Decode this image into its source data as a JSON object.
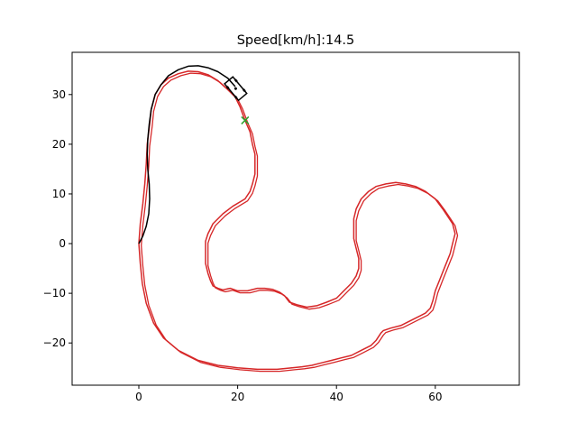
{
  "chart_data": {
    "type": "line",
    "title": "Speed[km/h]:14.5",
    "xlabel": "",
    "ylabel": "",
    "xlim": [
      -13.5,
      77
    ],
    "ylim": [
      -28.5,
      38.5
    ],
    "x_ticks": [
      0,
      20,
      40,
      60
    ],
    "y_ticks": [
      -20,
      -10,
      0,
      10,
      20,
      30
    ],
    "grid": false,
    "legend": "none",
    "colors": {
      "reference": "#d62728",
      "trajectory": "#000000",
      "target": "#2ca02c",
      "vehicle": "#000000"
    },
    "series": [
      {
        "kind": "reference-course",
        "points": [
          [
            21.5,
            24.8
          ],
          [
            22.5,
            22.5
          ],
          [
            23.0,
            20.0
          ],
          [
            23.5,
            18.0
          ],
          [
            23.5,
            16.0
          ],
          [
            23.5,
            14.0
          ],
          [
            23.0,
            12.0
          ],
          [
            22.5,
            10.5
          ],
          [
            21.5,
            9.0
          ],
          [
            19.0,
            7.5
          ],
          [
            17.0,
            6.0
          ],
          [
            16.0,
            5.0
          ],
          [
            15.0,
            4.0
          ],
          [
            14.5,
            3.0
          ],
          [
            14.0,
            2.0
          ],
          [
            13.5,
            0.5
          ],
          [
            13.5,
            -2.0
          ],
          [
            13.5,
            -4.0
          ],
          [
            14.0,
            -6.0
          ],
          [
            14.5,
            -7.5
          ],
          [
            15.0,
            -8.5
          ],
          [
            16.0,
            -9.0
          ],
          [
            17.0,
            -9.3
          ],
          [
            18.5,
            -9.0
          ],
          [
            20.0,
            -9.5
          ],
          [
            22.0,
            -9.5
          ],
          [
            24.0,
            -9.0
          ],
          [
            25.5,
            -9.0
          ],
          [
            27.0,
            -9.2
          ],
          [
            28.5,
            -9.8
          ],
          [
            29.5,
            -10.5
          ],
          [
            30.5,
            -11.8
          ],
          [
            32.0,
            -12.3
          ],
          [
            34.0,
            -12.8
          ],
          [
            36.0,
            -12.5
          ],
          [
            38.0,
            -11.8
          ],
          [
            40.0,
            -11.0
          ],
          [
            41.5,
            -9.5
          ],
          [
            43.0,
            -8.0
          ],
          [
            44.0,
            -6.5
          ],
          [
            44.5,
            -5.0
          ],
          [
            44.5,
            -3.0
          ],
          [
            44.0,
            -1.0
          ],
          [
            43.5,
            1.0
          ],
          [
            43.5,
            3.0
          ],
          [
            43.5,
            5.0
          ],
          [
            44.0,
            7.0
          ],
          [
            45.0,
            9.0
          ],
          [
            46.5,
            10.5
          ],
          [
            48.0,
            11.5
          ],
          [
            50.0,
            12.0
          ],
          [
            52.0,
            12.3
          ],
          [
            54.0,
            12.0
          ],
          [
            56.0,
            11.5
          ],
          [
            58.0,
            10.5
          ],
          [
            60.0,
            9.0
          ],
          [
            61.5,
            7.0
          ],
          [
            62.5,
            5.5
          ],
          [
            63.5,
            4.0
          ],
          [
            64.0,
            2.0
          ],
          [
            63.5,
            0.0
          ],
          [
            63.0,
            -2.0
          ],
          [
            62.0,
            -4.5
          ],
          [
            61.0,
            -7.0
          ],
          [
            60.0,
            -9.5
          ],
          [
            59.5,
            -11.5
          ],
          [
            59.0,
            -13.0
          ],
          [
            58.0,
            -14.0
          ],
          [
            57.0,
            -14.5
          ],
          [
            55.0,
            -15.5
          ],
          [
            53.0,
            -16.5
          ],
          [
            51.0,
            -17.0
          ],
          [
            49.5,
            -17.5
          ],
          [
            49.0,
            -18.0
          ],
          [
            48.0,
            -19.5
          ],
          [
            47.0,
            -20.5
          ],
          [
            45.0,
            -21.5
          ],
          [
            43.0,
            -22.5
          ],
          [
            41.0,
            -23.0
          ],
          [
            39.0,
            -23.5
          ],
          [
            37.0,
            -24.0
          ],
          [
            35.0,
            -24.5
          ],
          [
            33.0,
            -24.8
          ],
          [
            31.0,
            -25.0
          ],
          [
            28.0,
            -25.3
          ],
          [
            24.0,
            -25.3
          ],
          [
            20.0,
            -25.0
          ],
          [
            16.0,
            -24.5
          ],
          [
            12.0,
            -23.5
          ],
          [
            8.0,
            -21.5
          ],
          [
            5.0,
            -19.0
          ],
          [
            3.0,
            -16.0
          ],
          [
            1.5,
            -12.0
          ],
          [
            0.7,
            -8.0
          ],
          [
            0.3,
            -4.0
          ],
          [
            0.0,
            0.0
          ],
          [
            0.3,
            4.0
          ],
          [
            0.8,
            8.0
          ],
          [
            1.2,
            12.0
          ],
          [
            1.5,
            16.0
          ],
          [
            1.7,
            20.0
          ],
          [
            2.2,
            24.0
          ],
          [
            2.5,
            27.0
          ],
          [
            3.3,
            30.0
          ],
          [
            4.5,
            32.0
          ],
          [
            6.0,
            33.3
          ],
          [
            8.0,
            34.2
          ],
          [
            10.0,
            34.7
          ],
          [
            12.0,
            34.6
          ],
          [
            14.0,
            34.0
          ],
          [
            16.0,
            32.8
          ],
          [
            18.0,
            31.0
          ],
          [
            19.5,
            29.5
          ],
          [
            20.5,
            27.5
          ],
          [
            21.5,
            24.8
          ]
        ]
      },
      {
        "kind": "driven-path",
        "points": [
          [
            0.0,
            0.0
          ],
          [
            0.8,
            1.5
          ],
          [
            1.5,
            3.5
          ],
          [
            2.0,
            6.0
          ],
          [
            2.2,
            9.0
          ],
          [
            2.1,
            12.0
          ],
          [
            1.8,
            15.0
          ],
          [
            1.7,
            18.0
          ],
          [
            1.8,
            21.0
          ],
          [
            2.1,
            24.0
          ],
          [
            2.5,
            27.0
          ],
          [
            3.3,
            30.0
          ],
          [
            4.5,
            32.0
          ],
          [
            6.0,
            33.8
          ],
          [
            8.0,
            35.0
          ],
          [
            10.0,
            35.7
          ],
          [
            12.0,
            35.8
          ],
          [
            14.0,
            35.4
          ],
          [
            16.0,
            34.6
          ],
          [
            18.0,
            33.3
          ],
          [
            19.5,
            31.6
          ]
        ]
      }
    ],
    "target_marker": {
      "symbol": "x",
      "x": 21.5,
      "y": 24.8
    },
    "vehicle": {
      "x": 19.6,
      "y": 31.2,
      "heading_deg": -50
    }
  }
}
